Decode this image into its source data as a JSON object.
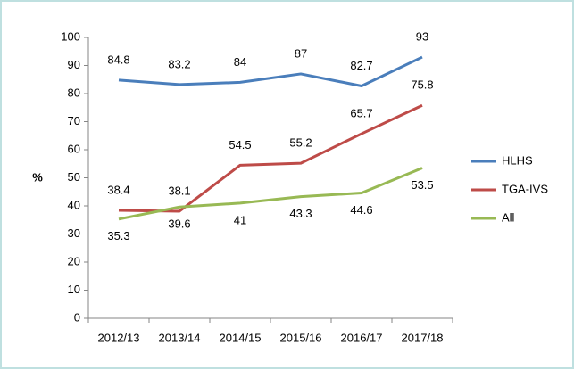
{
  "chart_data": {
    "type": "line",
    "y_label": "%",
    "categories": [
      "2012/13",
      "2013/14",
      "2014/15",
      "2015/16",
      "2016/17",
      "2017/18"
    ],
    "series": [
      {
        "name": "HLHS",
        "color": "#4a7ebb",
        "values": [
          84.8,
          83.2,
          84,
          87,
          82.7,
          93
        ]
      },
      {
        "name": "TGA-IVS",
        "color": "#be4b48",
        "values": [
          38.4,
          38.1,
          54.5,
          55.2,
          65.7,
          75.8
        ]
      },
      {
        "name": "All",
        "color": "#98b954",
        "values": [
          35.3,
          39.6,
          41,
          43.3,
          44.6,
          53.5
        ]
      }
    ],
    "ylim": [
      0,
      100
    ],
    "yticks": [
      0,
      10,
      20,
      30,
      40,
      50,
      60,
      70,
      80,
      90,
      100
    ],
    "grid": false,
    "legend": "right"
  }
}
